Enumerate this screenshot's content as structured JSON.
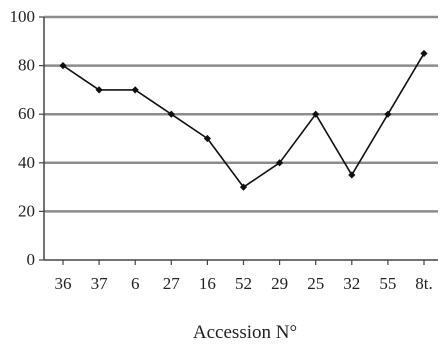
{
  "chart_data": {
    "type": "line",
    "title": "",
    "xlabel": "Accession N°",
    "ylabel": "",
    "categories": [
      "36",
      "37",
      "6",
      "27",
      "16",
      "52",
      "29",
      "25",
      "32",
      "55",
      "8t."
    ],
    "series": [
      {
        "values": [
          80,
          70,
          70,
          60,
          50,
          30,
          40,
          60,
          35,
          60,
          85
        ]
      }
    ],
    "ylim": [
      0,
      100
    ],
    "yticks": [
      "0",
      "20",
      "40",
      "60",
      "80",
      "100"
    ],
    "grid": true,
    "legend": "none",
    "colors": {
      "line": "#111111",
      "grid": "#8c8c8c",
      "axis": "#444444"
    }
  }
}
